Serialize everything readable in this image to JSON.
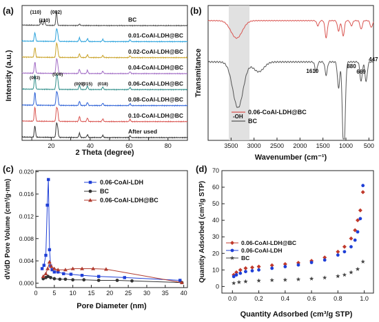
{
  "chart_data": [
    {
      "panel": "(a)",
      "type": "line",
      "xlabel": "2 Theta (degree)",
      "ylabel": "Intensity (a.u.)",
      "xlim": [
        5,
        90
      ],
      "xticks": [
        10,
        20,
        30,
        40,
        50,
        60,
        70,
        80,
        90
      ],
      "tick_labels": [
        "20",
        "40",
        "60",
        "80"
      ],
      "peak_labels": [
        {
          "text": "(110)",
          "x": 12
        },
        {
          "text": "(110)",
          "x": 16.5
        },
        {
          "text": "(002)",
          "x": 22.5
        },
        {
          "text": "(003)",
          "x": 11.6
        },
        {
          "text": "(006)",
          "x": 23.3
        },
        {
          "text": "(009)",
          "x": 34.5
        },
        {
          "text": "(015)",
          "x": 38.5
        },
        {
          "text": "(018)",
          "x": 46.5
        }
      ],
      "series": [
        {
          "name": "BC",
          "color": "#4a4a4a",
          "peaks": [
            [
              14.8,
              0.35
            ],
            [
              16.5,
              0.45
            ],
            [
              22.7,
              1.0
            ],
            [
              34.5,
              0.1
            ]
          ]
        },
        {
          "name": "0.01-CoAl-LDH@BC",
          "color": "#2aa2dc",
          "peaks": [
            [
              11.6,
              0.6
            ],
            [
              22.7,
              0.8
            ],
            [
              23.3,
              0.5
            ],
            [
              34.5,
              0.25
            ],
            [
              38.6,
              0.2
            ],
            [
              46.5,
              0.15
            ],
            [
              60.5,
              0.12
            ]
          ]
        },
        {
          "name": "0.02-CoAl-LDH@BC",
          "color": "#c9a227",
          "peaks": [
            [
              11.6,
              0.7
            ],
            [
              22.7,
              0.9
            ],
            [
              23.3,
              0.55
            ],
            [
              34.5,
              0.25
            ],
            [
              38.6,
              0.2
            ],
            [
              46.5,
              0.15
            ],
            [
              60.5,
              0.12
            ]
          ]
        },
        {
          "name": "0.04-CoAl-LDH@BC",
          "color": "#a06ac4",
          "peaks": [
            [
              11.6,
              0.8
            ],
            [
              22.7,
              0.9
            ],
            [
              23.3,
              0.6
            ],
            [
              34.5,
              0.3
            ],
            [
              38.6,
              0.22
            ],
            [
              46.5,
              0.17
            ],
            [
              60.5,
              0.13
            ]
          ]
        },
        {
          "name": "0.06-CoAl-LDH@BC",
          "color": "#2f8f8a",
          "peaks": [
            [
              11.6,
              1.0
            ],
            [
              22.7,
              0.85
            ],
            [
              23.3,
              0.7
            ],
            [
              34.5,
              0.3
            ],
            [
              38.6,
              0.25
            ],
            [
              46.5,
              0.18
            ],
            [
              60.5,
              0.15
            ]
          ]
        },
        {
          "name": "0.08-CoAl-LDH@BC",
          "color": "#2a5fd6",
          "peaks": [
            [
              11.6,
              0.9
            ],
            [
              22.7,
              0.8
            ],
            [
              23.3,
              0.65
            ],
            [
              34.5,
              0.3
            ],
            [
              38.6,
              0.22
            ],
            [
              46.5,
              0.17
            ],
            [
              60.5,
              0.14
            ]
          ]
        },
        {
          "name": "0.10-CoAl-LDH@BC",
          "color": "#d9534f",
          "peaks": [
            [
              11.6,
              1.0
            ],
            [
              22.7,
              0.8
            ],
            [
              23.3,
              0.7
            ],
            [
              34.5,
              0.35
            ],
            [
              38.6,
              0.25
            ],
            [
              46.5,
              0.2
            ],
            [
              60.5,
              0.15
            ]
          ]
        },
        {
          "name": "After used",
          "color": "#333333",
          "peaks": [
            [
              11.6,
              0.8
            ],
            [
              22.7,
              0.9
            ],
            [
              23.3,
              0.6
            ],
            [
              34.5,
              0.3
            ],
            [
              38.6,
              0.2
            ],
            [
              46.5,
              0.15
            ],
            [
              60.5,
              0.12
            ]
          ]
        }
      ]
    },
    {
      "panel": "(b)",
      "type": "line",
      "xlabel": "Wavenumber (cm⁻¹)",
      "ylabel": "Transmitance",
      "xlim": [
        4000,
        400
      ],
      "xticks": [
        3500,
        3000,
        2500,
        2000,
        1500,
        1000,
        500
      ],
      "shaded_band": [
        3550,
        3100
      ],
      "annotations": [
        {
          "text": "1610",
          "x": 1610
        },
        {
          "text": "880",
          "x": 880
        },
        {
          "text": "669",
          "x": 669
        },
        {
          "text": "447",
          "x": 447
        },
        {
          "text": "-OH",
          "x": 3350
        }
      ],
      "series": [
        {
          "name": "0.06-CoAl-LDH@BC",
          "color": "#d9534f",
          "dips": [
            [
              3430,
              0.25
            ],
            [
              3340,
              0.3
            ],
            [
              1610,
              0.15
            ],
            [
              1430,
              0.5
            ],
            [
              1160,
              0.3
            ],
            [
              1060,
              0.45
            ],
            [
              880,
              0.15
            ],
            [
              669,
              0.25
            ],
            [
              447,
              0.2
            ]
          ]
        },
        {
          "name": "BC",
          "color": "#555555",
          "dips": [
            [
              3350,
              0.7
            ],
            [
              2900,
              0.15
            ],
            [
              1650,
              0.15
            ],
            [
              1430,
              0.2
            ],
            [
              1160,
              0.4
            ],
            [
              1060,
              0.9
            ],
            [
              1030,
              0.8
            ],
            [
              670,
              0.3
            ],
            [
              560,
              0.3
            ]
          ]
        }
      ]
    },
    {
      "panel": "(c)",
      "type": "line",
      "xlabel": "Pore Diameter (nm)",
      "ylabel": "dV/dD Pore Volume (cm³/g·nm)",
      "xlim": [
        0,
        41
      ],
      "ylim": [
        -0.0008,
        0.0202
      ],
      "xticks": [
        0,
        5,
        10,
        15,
        20,
        25,
        30,
        35,
        40
      ],
      "yticks": [
        0.0,
        0.004,
        0.008,
        0.012,
        0.016,
        0.02
      ],
      "ytick_labels": [
        "0.000",
        "0.004",
        "0.008",
        "0.012",
        "0.016",
        "0.020"
      ],
      "legend": "top-right",
      "series": [
        {
          "name": "0.06-CoAl-LDH",
          "color": "#1f3fd6",
          "marker": "square",
          "x": [
            1.7,
            2.2,
            2.7,
            3.1,
            3.4,
            3.7,
            4.0,
            4.4,
            5.0,
            6.0,
            7.5,
            9.5,
            12.5,
            17.0,
            24.0,
            39.0
          ],
          "y": [
            0.0026,
            0.0032,
            0.005,
            0.014,
            0.0186,
            0.006,
            0.0031,
            0.0024,
            0.002,
            0.002,
            0.0017,
            0.0016,
            0.0014,
            0.0012,
            0.001,
            0.0005
          ]
        },
        {
          "name": "BC",
          "color": "#333333",
          "marker": "circle",
          "x": [
            2.0,
            2.7,
            3.3,
            4.0,
            5.0,
            6.5,
            8.0,
            10.0,
            13.0,
            17.0,
            22.0,
            26.0,
            39.5
          ],
          "y": [
            0.0008,
            0.001,
            0.0012,
            0.001,
            0.0008,
            0.0007,
            0.0007,
            0.0006,
            0.0006,
            0.0005,
            0.0005,
            0.0004,
            0.0001
          ]
        },
        {
          "name": "0.06-CoAl-LDH@BC",
          "color": "#b03a2e",
          "marker": "triangle",
          "x": [
            2.0,
            2.7,
            3.2,
            3.7,
            4.2,
            5.0,
            6.0,
            8.0,
            10.0,
            12.5,
            15.5,
            19.0,
            39.5
          ],
          "y": [
            0.0012,
            0.0017,
            0.0026,
            0.0038,
            0.003,
            0.0026,
            0.0024,
            0.0024,
            0.0026,
            0.0026,
            0.0026,
            0.0025,
            0.0001
          ]
        }
      ]
    },
    {
      "panel": "(d)",
      "type": "scatter",
      "xlabel": "Quantity Adsorbed (cm³/g STP)",
      "ylabel": "Quantity Adsorbed (cm³/g STP)",
      "xlim": [
        -0.08,
        1.07
      ],
      "ylim": [
        -4,
        70
      ],
      "xticks": [
        0.0,
        0.2,
        0.4,
        0.6,
        0.8,
        1.0
      ],
      "xtick_labels": [
        "0.0",
        "0.2",
        "0.4",
        "0.6",
        "0.8",
        "1.0"
      ],
      "yticks": [
        0,
        10,
        20,
        30,
        40,
        50,
        60,
        70
      ],
      "legend": "center-left",
      "series": [
        {
          "name": "0.06-CoAl-LDH@BC",
          "color": "#c0392b",
          "marker": "diamond",
          "x": [
            0.01,
            0.03,
            0.06,
            0.1,
            0.15,
            0.2,
            0.3,
            0.4,
            0.5,
            0.6,
            0.7,
            0.8,
            0.85,
            0.9,
            0.93,
            0.95,
            0.97,
            0.99
          ],
          "y": [
            7,
            8.5,
            10,
            11,
            11.5,
            12,
            12.8,
            13.5,
            14.3,
            15.5,
            17.5,
            21,
            24,
            29,
            34,
            40,
            46,
            57
          ]
        },
        {
          "name": "0.06-CoAl-LDH",
          "color": "#1f3fd6",
          "marker": "circle",
          "x": [
            0.01,
            0.03,
            0.06,
            0.1,
            0.15,
            0.2,
            0.3,
            0.4,
            0.5,
            0.6,
            0.7,
            0.8,
            0.85,
            0.9,
            0.93,
            0.95,
            0.97,
            0.99
          ],
          "y": [
            6,
            7,
            8,
            9,
            9.5,
            10,
            11,
            12,
            13,
            14.5,
            16,
            19,
            21,
            24,
            28,
            33,
            41,
            61
          ]
        },
        {
          "name": "BC",
          "color": "#444444",
          "marker": "star",
          "x": [
            0.01,
            0.05,
            0.1,
            0.2,
            0.3,
            0.4,
            0.5,
            0.6,
            0.7,
            0.8,
            0.85,
            0.9,
            0.95,
            0.99
          ],
          "y": [
            2,
            2.6,
            3,
            3.5,
            3.8,
            4,
            4.3,
            4.7,
            5.3,
            6.2,
            7,
            8.5,
            10.5,
            15
          ]
        }
      ]
    }
  ]
}
